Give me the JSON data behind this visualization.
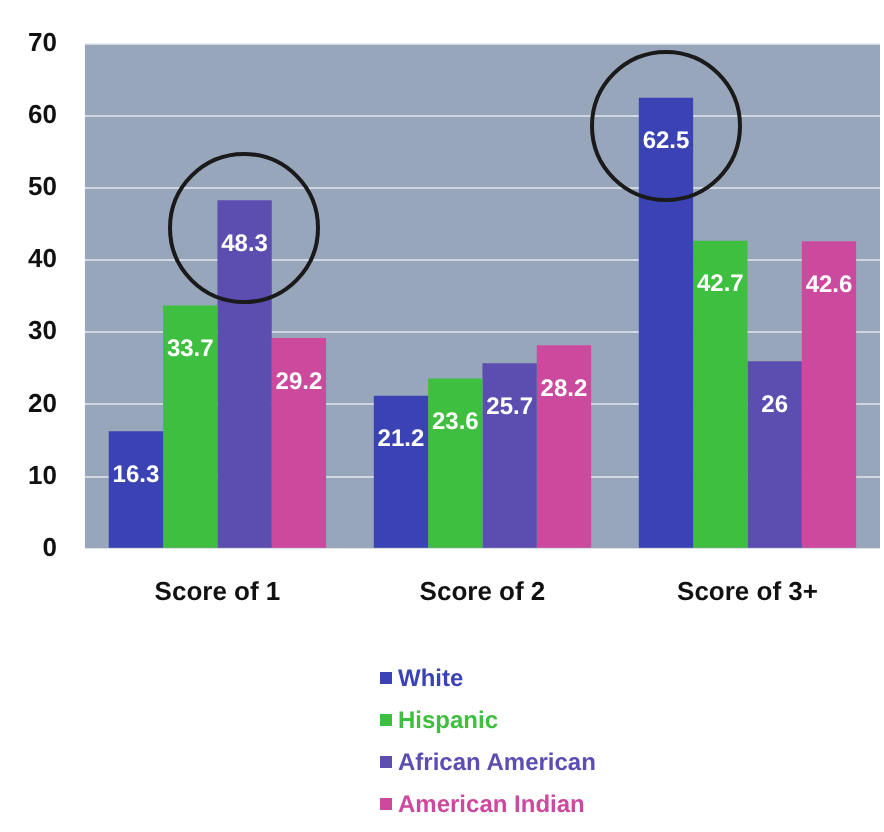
{
  "chart_data": {
    "type": "bar",
    "categories": [
      "Score of 1",
      "Score of 2",
      "Score of 3+"
    ],
    "series": [
      {
        "name": "White",
        "color": "#3a42b4",
        "values": [
          16.3,
          21.2,
          62.5
        ]
      },
      {
        "name": "Hispanic",
        "color": "#3fbf3f",
        "values": [
          33.7,
          23.6,
          42.7
        ]
      },
      {
        "name": "African American",
        "color": "#5b4eb0",
        "values": [
          48.3,
          25.7,
          26
        ]
      },
      {
        "name": "American Indian",
        "color": "#cc4a9e",
        "values": [
          29.2,
          28.2,
          42.6
        ]
      }
    ],
    "ylim": [
      0,
      70
    ],
    "yticks": [
      0,
      10,
      20,
      30,
      40,
      50,
      60,
      70
    ],
    "grid": "y",
    "legend": "bottom",
    "data_labels": true
  }
}
